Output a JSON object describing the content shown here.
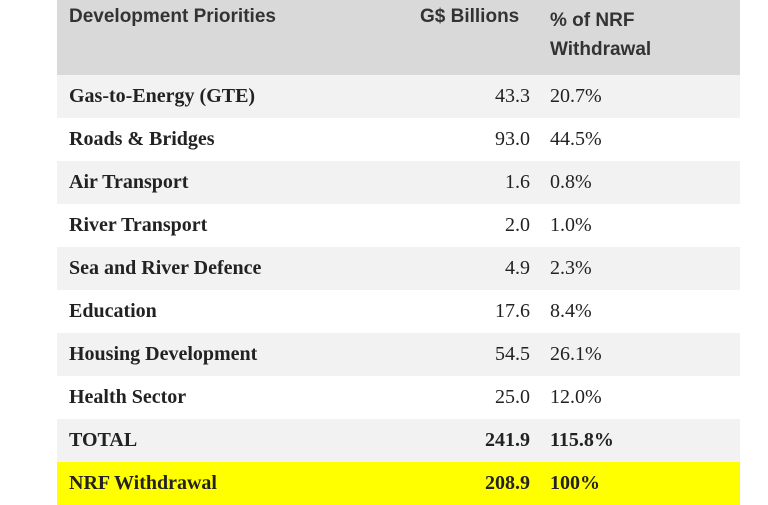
{
  "table": {
    "headers": {
      "priorities": "Development Priorities",
      "billions": "G$ Billions",
      "percent_line1": "% of NRF",
      "percent_line2": "Withdrawal"
    },
    "rows": [
      {
        "label": "Gas-to-Energy (GTE)",
        "billions": "43.3",
        "percent": "20.7%"
      },
      {
        "label": "Roads & Bridges",
        "billions": "93.0",
        "percent": "44.5%"
      },
      {
        "label": "Air Transport",
        "billions": "1.6",
        "percent": "0.8%"
      },
      {
        "label": "River Transport",
        "billions": "2.0",
        "percent": "1.0%"
      },
      {
        "label": "Sea and River Defence",
        "billions": "4.9",
        "percent": "2.3%"
      },
      {
        "label": "Education",
        "billions": "17.6",
        "percent": "8.4%"
      },
      {
        "label": "Housing Development",
        "billions": "54.5",
        "percent": "26.1%"
      },
      {
        "label": "Health Sector",
        "billions": "25.0",
        "percent": "12.0%"
      }
    ],
    "total": {
      "label": "TOTAL",
      "billions": "241.9",
      "percent": "115.8%"
    },
    "nrf": {
      "label": "NRF Withdrawal",
      "billions": "208.9",
      "percent": "100%"
    },
    "highlight_color": "#ffff00"
  }
}
